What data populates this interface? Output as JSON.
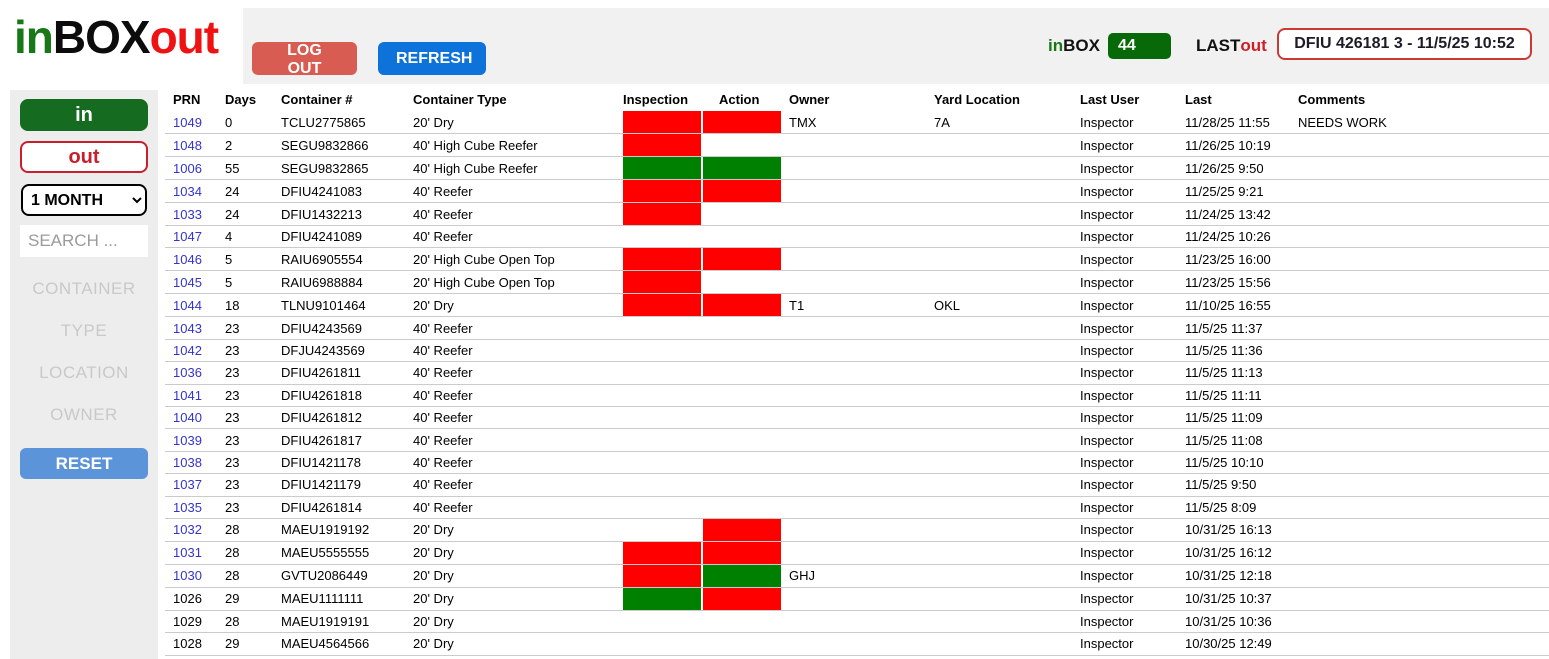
{
  "logo": {
    "part_in": "in",
    "part_box": "BOX",
    "part_out": "out"
  },
  "header": {
    "logout_label": "LOG OUT",
    "refresh_label": "REFRESH",
    "inbox_label_green": "in",
    "inbox_label_black": "BOX",
    "inbox_count": "44",
    "last_label_black": "LAST",
    "last_label_red": "out",
    "last_out_value": "DFIU 426181 3 - 11/5/25 10:52"
  },
  "sidebar": {
    "in_label": "in",
    "out_label": "out",
    "period_selected": "1 MONTH",
    "search_placeholder": "SEARCH ...",
    "filters": [
      "CONTAINER",
      "TYPE",
      "LOCATION",
      "OWNER"
    ],
    "reset_label": "RESET"
  },
  "colors": {
    "status_red": "#ff0000",
    "status_green": "#008000",
    "badge_green": "#076907",
    "logout_red": "#d85c52",
    "refresh_blue": "#0d72d9",
    "reset_blue": "#5b94d8"
  },
  "table": {
    "columns": [
      "PRN",
      "Days",
      "Container #",
      "Container Type",
      "Inspection",
      "Action",
      "Owner",
      "Yard Location",
      "Last User",
      "Last",
      "Comments"
    ],
    "rows": [
      {
        "prn": "1049",
        "link": true,
        "days": "0",
        "container": "TCLU2775865",
        "type": "20' Dry",
        "inspection": "red",
        "action": "red",
        "owner": "TMX",
        "yard": "7A",
        "last_user": "Inspector",
        "last": "11/28/25 11:55",
        "comments": "NEEDS WORK"
      },
      {
        "prn": "1048",
        "link": true,
        "days": "2",
        "container": "SEGU9832866",
        "type": "40' High Cube Reefer",
        "inspection": "red",
        "action": "",
        "owner": "",
        "yard": "",
        "last_user": "Inspector",
        "last": "11/26/25 10:19",
        "comments": ""
      },
      {
        "prn": "1006",
        "link": true,
        "days": "55",
        "container": "SEGU9832865",
        "type": "40' High Cube Reefer",
        "inspection": "green",
        "action": "green",
        "owner": "",
        "yard": "",
        "last_user": "Inspector",
        "last": "11/26/25 9:50",
        "comments": ""
      },
      {
        "prn": "1034",
        "link": true,
        "days": "24",
        "container": "DFIU4241083",
        "type": "40' Reefer",
        "inspection": "red",
        "action": "red",
        "owner": "",
        "yard": "",
        "last_user": "Inspector",
        "last": "11/25/25 9:21",
        "comments": ""
      },
      {
        "prn": "1033",
        "link": true,
        "days": "24",
        "container": "DFIU1432213",
        "type": "40' Reefer",
        "inspection": "red",
        "action": "",
        "owner": "",
        "yard": "",
        "last_user": "Inspector",
        "last": "11/24/25 13:42",
        "comments": ""
      },
      {
        "prn": "1047",
        "link": true,
        "days": "4",
        "container": "DFIU4241089",
        "type": "40' Reefer",
        "inspection": "",
        "action": "",
        "owner": "",
        "yard": "",
        "last_user": "Inspector",
        "last": "11/24/25 10:26",
        "comments": ""
      },
      {
        "prn": "1046",
        "link": true,
        "days": "5",
        "container": "RAIU6905554",
        "type": "20' High Cube Open Top",
        "inspection": "red",
        "action": "red",
        "owner": "",
        "yard": "",
        "last_user": "Inspector",
        "last": "11/23/25 16:00",
        "comments": ""
      },
      {
        "prn": "1045",
        "link": true,
        "days": "5",
        "container": "RAIU6988884",
        "type": "20' High Cube Open Top",
        "inspection": "red",
        "action": "",
        "owner": "",
        "yard": "",
        "last_user": "Inspector",
        "last": "11/23/25 15:56",
        "comments": ""
      },
      {
        "prn": "1044",
        "link": true,
        "days": "18",
        "container": "TLNU9101464",
        "type": "20' Dry",
        "inspection": "red",
        "action": "red",
        "owner": "T1",
        "yard": "OKL",
        "last_user": "Inspector",
        "last": "11/10/25 16:55",
        "comments": ""
      },
      {
        "prn": "1043",
        "link": true,
        "days": "23",
        "container": "DFIU4243569",
        "type": "40' Reefer",
        "inspection": "",
        "action": "",
        "owner": "",
        "yard": "",
        "last_user": "Inspector",
        "last": "11/5/25 11:37",
        "comments": ""
      },
      {
        "prn": "1042",
        "link": true,
        "days": "23",
        "container": "DFJU4243569",
        "type": "40' Reefer",
        "inspection": "",
        "action": "",
        "owner": "",
        "yard": "",
        "last_user": "Inspector",
        "last": "11/5/25 11:36",
        "comments": ""
      },
      {
        "prn": "1036",
        "link": true,
        "days": "23",
        "container": "DFIU4261811",
        "type": "40' Reefer",
        "inspection": "",
        "action": "",
        "owner": "",
        "yard": "",
        "last_user": "Inspector",
        "last": "11/5/25 11:13",
        "comments": ""
      },
      {
        "prn": "1041",
        "link": true,
        "days": "23",
        "container": "DFIU4261818",
        "type": "40' Reefer",
        "inspection": "",
        "action": "",
        "owner": "",
        "yard": "",
        "last_user": "Inspector",
        "last": "11/5/25 11:11",
        "comments": ""
      },
      {
        "prn": "1040",
        "link": true,
        "days": "23",
        "container": "DFIU4261812",
        "type": "40' Reefer",
        "inspection": "",
        "action": "",
        "owner": "",
        "yard": "",
        "last_user": "Inspector",
        "last": "11/5/25 11:09",
        "comments": ""
      },
      {
        "prn": "1039",
        "link": true,
        "days": "23",
        "container": "DFIU4261817",
        "type": "40' Reefer",
        "inspection": "",
        "action": "",
        "owner": "",
        "yard": "",
        "last_user": "Inspector",
        "last": "11/5/25 11:08",
        "comments": ""
      },
      {
        "prn": "1038",
        "link": true,
        "days": "23",
        "container": "DFIU1421178",
        "type": "40' Reefer",
        "inspection": "",
        "action": "",
        "owner": "",
        "yard": "",
        "last_user": "Inspector",
        "last": "11/5/25 10:10",
        "comments": ""
      },
      {
        "prn": "1037",
        "link": true,
        "days": "23",
        "container": "DFIU1421179",
        "type": "40' Reefer",
        "inspection": "",
        "action": "",
        "owner": "",
        "yard": "",
        "last_user": "Inspector",
        "last": "11/5/25 9:50",
        "comments": ""
      },
      {
        "prn": "1035",
        "link": true,
        "days": "23",
        "container": "DFIU4261814",
        "type": "40' Reefer",
        "inspection": "",
        "action": "",
        "owner": "",
        "yard": "",
        "last_user": "Inspector",
        "last": "11/5/25 8:09",
        "comments": ""
      },
      {
        "prn": "1032",
        "link": true,
        "days": "28",
        "container": "MAEU1919192",
        "type": "20' Dry",
        "inspection": "",
        "action": "red",
        "owner": "",
        "yard": "",
        "last_user": "Inspector",
        "last": "10/31/25 16:13",
        "comments": ""
      },
      {
        "prn": "1031",
        "link": true,
        "days": "28",
        "container": "MAEU5555555",
        "type": "20' Dry",
        "inspection": "red",
        "action": "red",
        "owner": "",
        "yard": "",
        "last_user": "Inspector",
        "last": "10/31/25 16:12",
        "comments": ""
      },
      {
        "prn": "1030",
        "link": true,
        "days": "28",
        "container": "GVTU2086449",
        "type": "20' Dry",
        "inspection": "red",
        "action": "green",
        "owner": "GHJ",
        "yard": "",
        "last_user": "Inspector",
        "last": "10/31/25 12:18",
        "comments": ""
      },
      {
        "prn": "1026",
        "link": false,
        "days": "29",
        "container": "MAEU1111111",
        "type": "20' Dry",
        "inspection": "green",
        "action": "red",
        "owner": "",
        "yard": "",
        "last_user": "Inspector",
        "last": "10/31/25 10:37",
        "comments": ""
      },
      {
        "prn": "1029",
        "link": false,
        "days": "28",
        "container": "MAEU1919191",
        "type": "20' Dry",
        "inspection": "",
        "action": "",
        "owner": "",
        "yard": "",
        "last_user": "Inspector",
        "last": "10/31/25 10:36",
        "comments": ""
      },
      {
        "prn": "1028",
        "link": false,
        "days": "29",
        "container": "MAEU4564566",
        "type": "20' Dry",
        "inspection": "",
        "action": "",
        "owner": "",
        "yard": "",
        "last_user": "Inspector",
        "last": "10/30/25 12:49",
        "comments": ""
      }
    ]
  }
}
